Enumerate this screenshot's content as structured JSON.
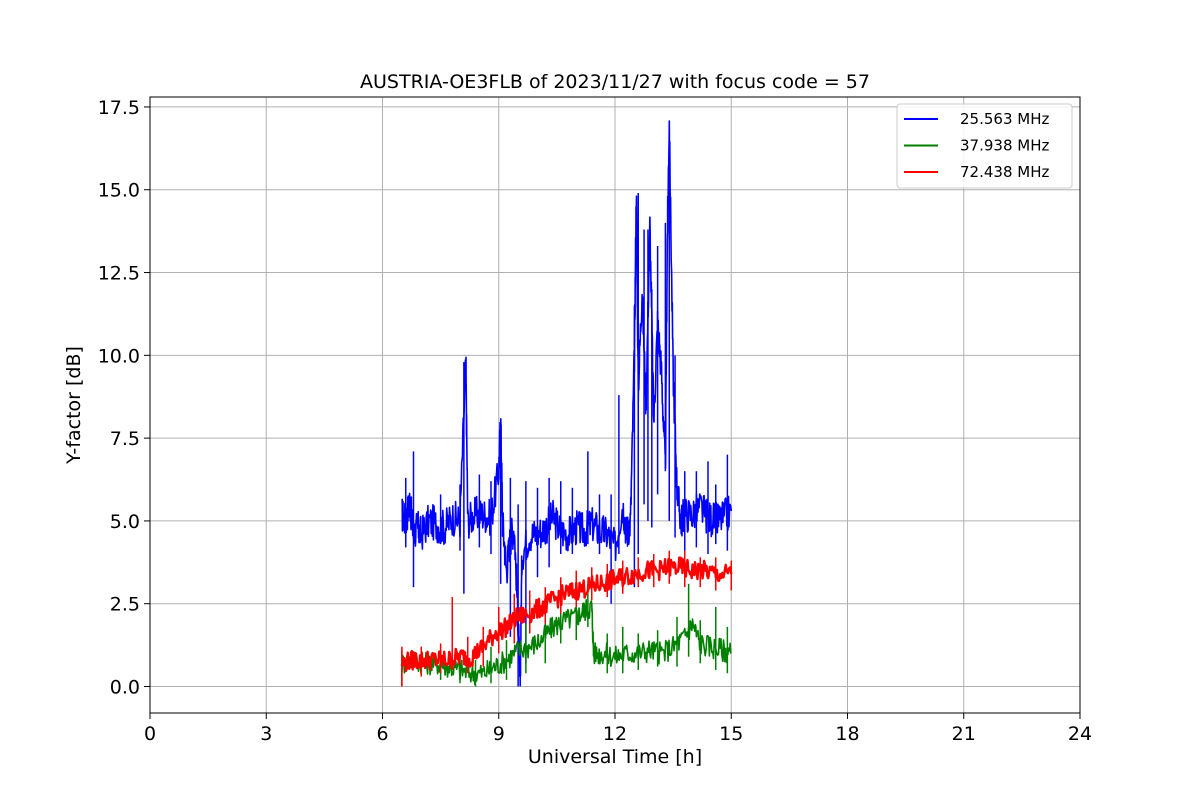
{
  "chart_data": {
    "type": "line",
    "title": "AUSTRIA-OE3FLB of 2023/11/27 with focus code = 57",
    "xlabel": "Universal Time [h]",
    "ylabel": "Y-factor [dB]",
    "xlim": [
      0,
      24
    ],
    "ylim": [
      -0.8,
      17.8
    ],
    "xticks": [
      0,
      3,
      6,
      9,
      12,
      15,
      18,
      21,
      24
    ],
    "yticks": [
      0.0,
      2.5,
      5.0,
      7.5,
      10.0,
      12.5,
      15.0,
      17.5
    ],
    "xtick_labels": [
      "0",
      "3",
      "6",
      "9",
      "12",
      "15",
      "18",
      "21",
      "24"
    ],
    "ytick_labels": [
      "0.0",
      "2.5",
      "5.0",
      "7.5",
      "10.0",
      "12.5",
      "15.0",
      "17.5"
    ],
    "grid": true,
    "legend_position": "top-right",
    "series": [
      {
        "name": "25.563 MHz",
        "color": "#0000ff",
        "points": [
          [
            6.5,
            5.2
          ],
          [
            6.6,
            5.0
          ],
          [
            6.7,
            5.6
          ],
          [
            6.8,
            4.6
          ],
          [
            6.9,
            4.8
          ],
          [
            7.0,
            4.6
          ],
          [
            7.2,
            5.0
          ],
          [
            7.4,
            4.9
          ],
          [
            7.6,
            4.8
          ],
          [
            7.8,
            5.1
          ],
          [
            8.0,
            5.0
          ],
          [
            8.15,
            9.8
          ],
          [
            8.2,
            5.0
          ],
          [
            8.4,
            5.2
          ],
          [
            8.6,
            5.2
          ],
          [
            8.8,
            5.1
          ],
          [
            9.0,
            6.5
          ],
          [
            9.05,
            8.1
          ],
          [
            9.1,
            5.0
          ],
          [
            9.2,
            3.5
          ],
          [
            9.3,
            4.5
          ],
          [
            9.4,
            4.8
          ],
          [
            9.5,
            2.0
          ],
          [
            9.55,
            0.0
          ],
          [
            9.6,
            4.0
          ],
          [
            9.8,
            4.6
          ],
          [
            10.0,
            4.6
          ],
          [
            10.2,
            4.8
          ],
          [
            10.4,
            5.1
          ],
          [
            10.6,
            4.7
          ],
          [
            10.8,
            4.6
          ],
          [
            11.0,
            4.8
          ],
          [
            11.2,
            4.7
          ],
          [
            11.4,
            4.9
          ],
          [
            11.6,
            4.7
          ],
          [
            11.8,
            4.6
          ],
          [
            12.0,
            4.2
          ],
          [
            12.2,
            5.5
          ],
          [
            12.3,
            4.6
          ],
          [
            12.4,
            5.0
          ],
          [
            12.5,
            10.0
          ],
          [
            12.55,
            14.9
          ],
          [
            12.6,
            9.0
          ],
          [
            12.7,
            12.0
          ],
          [
            12.8,
            8.5
          ],
          [
            12.9,
            13.9
          ],
          [
            13.0,
            8.0
          ],
          [
            13.1,
            11.0
          ],
          [
            13.2,
            9.5
          ],
          [
            13.3,
            6.5
          ],
          [
            13.35,
            13.5
          ],
          [
            13.4,
            17.0
          ],
          [
            13.5,
            9.5
          ],
          [
            13.6,
            6.0
          ],
          [
            13.7,
            5.0
          ],
          [
            13.8,
            5.2
          ],
          [
            14.0,
            5.2
          ],
          [
            14.2,
            5.4
          ],
          [
            14.4,
            5.1
          ],
          [
            14.6,
            5.0
          ],
          [
            14.8,
            5.1
          ],
          [
            15.0,
            5.3
          ]
        ],
        "spikes": [
          [
            6.6,
            4.2,
            6.3
          ],
          [
            6.8,
            3.0,
            7.1
          ],
          [
            7.5,
            4.3,
            5.8
          ],
          [
            8.0,
            4.1,
            6.1
          ],
          [
            8.1,
            2.8,
            9.8
          ],
          [
            8.5,
            4.2,
            6.4
          ],
          [
            8.8,
            4.0,
            6.2
          ],
          [
            9.05,
            3.1,
            8.1
          ],
          [
            9.3,
            1.5,
            6.3
          ],
          [
            9.5,
            0.0,
            5.5
          ],
          [
            9.7,
            0.7,
            6.2
          ],
          [
            10.0,
            3.3,
            6.0
          ],
          [
            10.3,
            3.6,
            6.3
          ],
          [
            10.6,
            4.0,
            6.2
          ],
          [
            10.9,
            4.0,
            6.0
          ],
          [
            11.3,
            4.3,
            7.1
          ],
          [
            11.6,
            4.0,
            5.8
          ],
          [
            11.9,
            2.5,
            5.8
          ],
          [
            12.1,
            4.0,
            8.8
          ],
          [
            12.5,
            3.0,
            11.5
          ],
          [
            12.6,
            4.0,
            14.9
          ],
          [
            12.75,
            5.5,
            13.8
          ],
          [
            12.85,
            5.0,
            13.8
          ],
          [
            12.95,
            4.8,
            12.0
          ],
          [
            13.1,
            5.8,
            13.3
          ],
          [
            13.3,
            6.5,
            14.0
          ],
          [
            13.4,
            5.0,
            17.0
          ],
          [
            13.55,
            4.5,
            10.0
          ],
          [
            13.8,
            4.0,
            6.5
          ],
          [
            14.1,
            4.2,
            6.5
          ],
          [
            14.4,
            4.0,
            6.8
          ],
          [
            14.6,
            4.3,
            6.1
          ],
          [
            14.9,
            4.1,
            7.0
          ]
        ]
      },
      {
        "name": "37.938 MHz",
        "color": "#008000",
        "points": [
          [
            6.5,
            0.7
          ],
          [
            6.8,
            0.8
          ],
          [
            7.1,
            0.7
          ],
          [
            7.4,
            0.7
          ],
          [
            7.7,
            0.6
          ],
          [
            8.0,
            0.5
          ],
          [
            8.3,
            0.4
          ],
          [
            8.6,
            0.4
          ],
          [
            8.9,
            0.6
          ],
          [
            9.2,
            0.8
          ],
          [
            9.5,
            1.1
          ],
          [
            9.8,
            1.2
          ],
          [
            10.1,
            1.4
          ],
          [
            10.4,
            1.8
          ],
          [
            10.7,
            2.0
          ],
          [
            11.0,
            2.1
          ],
          [
            11.2,
            2.3
          ],
          [
            11.4,
            2.4
          ],
          [
            11.45,
            1.0
          ],
          [
            11.7,
            1.0
          ],
          [
            12.0,
            0.9
          ],
          [
            12.3,
            1.0
          ],
          [
            12.6,
            1.0
          ],
          [
            12.9,
            1.1
          ],
          [
            13.2,
            1.0
          ],
          [
            13.5,
            1.2
          ],
          [
            13.8,
            1.5
          ],
          [
            14.0,
            1.9
          ],
          [
            14.2,
            1.3
          ],
          [
            14.5,
            1.2
          ],
          [
            14.8,
            1.1
          ],
          [
            15.0,
            1.0
          ]
        ],
        "spikes": [
          [
            6.5,
            0.0,
            1.1
          ],
          [
            7.0,
            0.3,
            1.2
          ],
          [
            7.5,
            0.2,
            1.1
          ],
          [
            8.0,
            0.1,
            0.9
          ],
          [
            8.4,
            0.0,
            0.8
          ],
          [
            8.8,
            0.1,
            1.2
          ],
          [
            9.2,
            0.2,
            1.4
          ],
          [
            9.7,
            0.4,
            1.9
          ],
          [
            10.2,
            0.7,
            2.3
          ],
          [
            10.6,
            1.3,
            2.9
          ],
          [
            11.0,
            1.4,
            3.3
          ],
          [
            11.3,
            1.8,
            2.9
          ],
          [
            11.8,
            0.4,
            1.6
          ],
          [
            12.2,
            0.4,
            1.8
          ],
          [
            12.6,
            0.5,
            1.6
          ],
          [
            13.1,
            0.6,
            1.7
          ],
          [
            13.6,
            0.6,
            2.1
          ],
          [
            13.9,
            0.9,
            3.1
          ],
          [
            14.2,
            0.7,
            2.0
          ],
          [
            14.6,
            0.5,
            2.4
          ],
          [
            14.9,
            0.4,
            1.8
          ]
        ]
      },
      {
        "name": "72.438 MHz",
        "color": "#ff0000",
        "points": [
          [
            6.5,
            0.7
          ],
          [
            6.8,
            0.8
          ],
          [
            7.1,
            0.8
          ],
          [
            7.4,
            0.8
          ],
          [
            7.7,
            0.8
          ],
          [
            8.0,
            0.9
          ],
          [
            8.3,
            0.9
          ],
          [
            8.6,
            1.2
          ],
          [
            8.9,
            1.6
          ],
          [
            9.2,
            1.8
          ],
          [
            9.5,
            2.1
          ],
          [
            9.8,
            2.2
          ],
          [
            10.1,
            2.4
          ],
          [
            10.4,
            2.6
          ],
          [
            10.7,
            2.8
          ],
          [
            11.0,
            2.9
          ],
          [
            11.3,
            3.0
          ],
          [
            11.6,
            3.1
          ],
          [
            11.9,
            3.2
          ],
          [
            12.2,
            3.3
          ],
          [
            12.5,
            3.4
          ],
          [
            12.8,
            3.5
          ],
          [
            13.1,
            3.5
          ],
          [
            13.4,
            3.6
          ],
          [
            13.7,
            3.6
          ],
          [
            14.0,
            3.5
          ],
          [
            14.3,
            3.5
          ],
          [
            14.6,
            3.4
          ],
          [
            15.0,
            3.4
          ]
        ],
        "spikes": [
          [
            6.5,
            0.0,
            1.2
          ],
          [
            7.0,
            0.3,
            1.2
          ],
          [
            7.5,
            0.4,
            1.3
          ],
          [
            7.8,
            0.5,
            2.7
          ],
          [
            8.2,
            0.4,
            1.5
          ],
          [
            8.6,
            0.6,
            1.8
          ],
          [
            9.0,
            1.0,
            2.4
          ],
          [
            9.4,
            1.3,
            2.8
          ],
          [
            9.8,
            1.6,
            2.9
          ],
          [
            10.2,
            1.9,
            3.0
          ],
          [
            10.6,
            2.2,
            3.3
          ],
          [
            11.0,
            2.4,
            3.5
          ],
          [
            11.4,
            2.6,
            3.6
          ],
          [
            11.8,
            2.7,
            3.7
          ],
          [
            12.2,
            2.8,
            3.8
          ],
          [
            12.6,
            3.0,
            3.9
          ],
          [
            13.0,
            3.0,
            4.0
          ],
          [
            13.4,
            3.1,
            4.1
          ],
          [
            13.8,
            3.0,
            4.1
          ],
          [
            14.2,
            3.0,
            3.9
          ],
          [
            14.6,
            2.9,
            3.9
          ],
          [
            15.0,
            2.9,
            3.8
          ]
        ]
      }
    ]
  }
}
